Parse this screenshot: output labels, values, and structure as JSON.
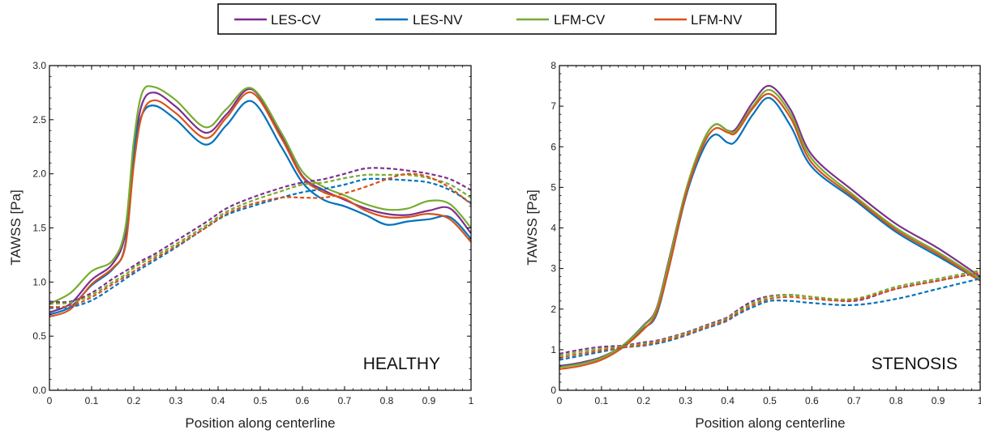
{
  "colors": {
    "LES-CV": "#7E2F8E",
    "LES-NV": "#0072BD",
    "LFM-CV": "#77AC30",
    "LFM-NV": "#D95319"
  },
  "legend": [
    "LES-CV",
    "LES-NV",
    "LFM-CV",
    "LFM-NV"
  ],
  "chart_data": [
    {
      "type": "line",
      "panel_label": "HEALTHY",
      "xlabel": "Position along centerline",
      "ylabel": "TAWSS [Pa]",
      "xlim": [
        0,
        1
      ],
      "ylim": [
        0,
        3
      ],
      "xticks": [
        "0",
        "0.1",
        "0.2",
        "0.3",
        "0.4",
        "0.5",
        "0.6",
        "0.7",
        "0.8",
        "0.9",
        "1"
      ],
      "yticks": [
        "0.0",
        "0.5",
        "1.0",
        "1.5",
        "2.0",
        "2.5",
        "3.0"
      ],
      "x": [
        0,
        0.05,
        0.1,
        0.15,
        0.18,
        0.2,
        0.22,
        0.25,
        0.3,
        0.37,
        0.42,
        0.48,
        0.55,
        0.6,
        0.65,
        0.7,
        0.75,
        0.8,
        0.85,
        0.9,
        0.95,
        1.0
      ],
      "series": [
        {
          "name": "LES-CV",
          "style": "solid",
          "values": [
            0.72,
            0.8,
            1.02,
            1.17,
            1.45,
            2.2,
            2.65,
            2.75,
            2.62,
            2.38,
            2.55,
            2.78,
            2.35,
            1.98,
            1.85,
            1.76,
            1.68,
            1.63,
            1.62,
            1.66,
            1.68,
            1.45
          ]
        },
        {
          "name": "LES-NV",
          "style": "solid",
          "values": [
            0.7,
            0.77,
            0.97,
            1.12,
            1.35,
            2.2,
            2.55,
            2.63,
            2.5,
            2.27,
            2.45,
            2.67,
            2.25,
            1.92,
            1.76,
            1.7,
            1.62,
            1.53,
            1.56,
            1.58,
            1.6,
            1.4
          ]
        },
        {
          "name": "LFM-CV",
          "style": "solid",
          "values": [
            0.8,
            0.9,
            1.1,
            1.2,
            1.5,
            2.3,
            2.75,
            2.8,
            2.68,
            2.43,
            2.6,
            2.79,
            2.38,
            2.02,
            1.88,
            1.8,
            1.72,
            1.67,
            1.68,
            1.75,
            1.72,
            1.5
          ]
        },
        {
          "name": "LFM-NV",
          "style": "solid",
          "values": [
            0.68,
            0.75,
            0.98,
            1.13,
            1.33,
            2.08,
            2.55,
            2.68,
            2.56,
            2.33,
            2.52,
            2.75,
            2.33,
            1.97,
            1.83,
            1.77,
            1.66,
            1.6,
            1.6,
            1.63,
            1.58,
            1.37
          ]
        },
        {
          "name": "LES-CV",
          "style": "dashed",
          "values": [
            0.82,
            0.82,
            0.9,
            1.03,
            1.1,
            1.15,
            1.2,
            1.26,
            1.38,
            1.55,
            1.68,
            1.78,
            1.87,
            1.92,
            1.95,
            2.0,
            2.05,
            2.05,
            2.03,
            2.0,
            1.95,
            1.85
          ]
        },
        {
          "name": "LES-NV",
          "style": "dashed",
          "values": [
            0.76,
            0.77,
            0.83,
            0.95,
            1.03,
            1.08,
            1.13,
            1.2,
            1.32,
            1.5,
            1.62,
            1.7,
            1.78,
            1.83,
            1.86,
            1.9,
            1.95,
            1.95,
            1.94,
            1.92,
            1.85,
            1.73
          ]
        },
        {
          "name": "LFM-CV",
          "style": "dashed",
          "values": [
            0.8,
            0.81,
            0.88,
            1.0,
            1.07,
            1.13,
            1.18,
            1.24,
            1.35,
            1.52,
            1.65,
            1.75,
            1.84,
            1.9,
            1.92,
            1.96,
            1.99,
            1.99,
            1.99,
            1.96,
            1.9,
            1.78
          ]
        },
        {
          "name": "LFM-NV",
          "style": "dashed",
          "values": [
            0.77,
            0.78,
            0.86,
            0.98,
            1.05,
            1.1,
            1.15,
            1.22,
            1.33,
            1.5,
            1.63,
            1.72,
            1.78,
            1.78,
            1.78,
            1.82,
            1.88,
            1.95,
            2.0,
            1.97,
            1.87,
            1.72
          ]
        }
      ]
    },
    {
      "type": "line",
      "panel_label": "STENOSIS",
      "xlabel": "Position along centerline",
      "ylabel": "TAWSS [Pa]",
      "xlim": [
        0,
        1
      ],
      "ylim": [
        0,
        8
      ],
      "xticks": [
        "0",
        "0.1",
        "0.2",
        "0.3",
        "0.4",
        "0.5",
        "0.6",
        "0.7",
        "0.8",
        "0.9",
        "1"
      ],
      "yticks": [
        "0",
        "1",
        "2",
        "3",
        "4",
        "5",
        "6",
        "7",
        "8"
      ],
      "x": [
        0,
        0.05,
        0.1,
        0.15,
        0.2,
        0.23,
        0.26,
        0.3,
        0.34,
        0.37,
        0.4,
        0.42,
        0.46,
        0.5,
        0.55,
        0.6,
        0.7,
        0.8,
        0.9,
        1.0
      ],
      "series": [
        {
          "name": "LES-CV",
          "style": "solid",
          "values": [
            0.6,
            0.68,
            0.82,
            1.1,
            1.6,
            2.0,
            3.2,
            4.9,
            6.1,
            6.55,
            6.4,
            6.45,
            7.1,
            7.5,
            6.9,
            5.8,
            4.9,
            4.1,
            3.5,
            2.8
          ]
        },
        {
          "name": "LES-NV",
          "style": "solid",
          "values": [
            0.58,
            0.65,
            0.8,
            1.1,
            1.52,
            1.85,
            3.0,
            4.75,
            5.9,
            6.3,
            6.1,
            6.15,
            6.8,
            7.2,
            6.5,
            5.5,
            4.7,
            3.9,
            3.3,
            2.7
          ]
        },
        {
          "name": "LFM-CV",
          "style": "solid",
          "values": [
            0.57,
            0.65,
            0.8,
            1.1,
            1.58,
            1.98,
            3.15,
            4.9,
            6.1,
            6.55,
            6.4,
            6.4,
            7.0,
            7.4,
            6.8,
            5.7,
            4.8,
            4.0,
            3.4,
            2.75
          ]
        },
        {
          "name": "LFM-NV",
          "style": "solid",
          "values": [
            0.52,
            0.6,
            0.75,
            1.05,
            1.5,
            1.9,
            3.0,
            4.8,
            6.0,
            6.45,
            6.35,
            6.35,
            6.95,
            7.3,
            6.7,
            5.6,
            4.75,
            3.95,
            3.35,
            2.7
          ]
        },
        {
          "name": "LES-CV",
          "style": "dashed",
          "values": [
            0.9,
            1.0,
            1.07,
            1.1,
            1.18,
            1.22,
            1.3,
            1.42,
            1.57,
            1.68,
            1.8,
            1.95,
            2.2,
            2.32,
            2.35,
            2.3,
            2.2,
            2.5,
            2.7,
            2.9
          ]
        },
        {
          "name": "LES-NV",
          "style": "dashed",
          "values": [
            0.75,
            0.85,
            0.95,
            1.05,
            1.1,
            1.15,
            1.22,
            1.35,
            1.5,
            1.6,
            1.72,
            1.85,
            2.05,
            2.2,
            2.2,
            2.15,
            2.1,
            2.25,
            2.5,
            2.75
          ]
        },
        {
          "name": "LFM-CV",
          "style": "dashed",
          "values": [
            0.85,
            0.95,
            1.02,
            1.08,
            1.15,
            1.2,
            1.28,
            1.4,
            1.55,
            1.65,
            1.78,
            1.92,
            2.15,
            2.3,
            2.35,
            2.3,
            2.25,
            2.55,
            2.75,
            2.95
          ]
        },
        {
          "name": "LFM-NV",
          "style": "dashed",
          "values": [
            0.8,
            0.9,
            0.98,
            1.06,
            1.12,
            1.18,
            1.25,
            1.37,
            1.52,
            1.62,
            1.75,
            1.88,
            2.1,
            2.25,
            2.3,
            2.25,
            2.22,
            2.5,
            2.7,
            2.9
          ]
        }
      ]
    }
  ]
}
